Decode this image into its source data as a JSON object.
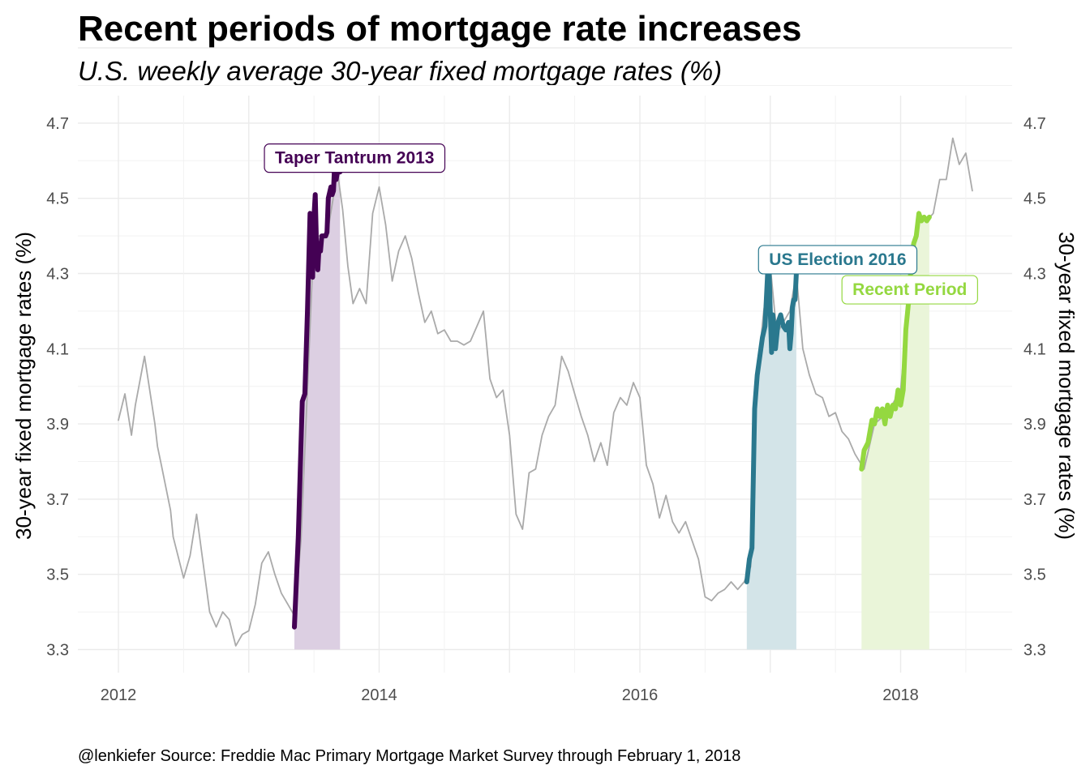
{
  "chart_data": {
    "type": "line",
    "title": "Recent periods of mortgage rate increases",
    "subtitle": "U.S. weekly average 30-year fixed mortgage rates (%)",
    "ylabel": "30-year fixed mortgage rates (%)",
    "ylabel_right": "30-year fixed mortgage rates (%)",
    "caption": "@lenkiefer Source: Freddie Mac Primary Mortgage Market Survey through February 1, 2018",
    "ylim": [
      3.3,
      4.7
    ],
    "xlim": [
      2012.0,
      2018.6
    ],
    "x_ticks": [
      "2012",
      "2014",
      "2016",
      "2018"
    ],
    "y_ticks": [
      "3.3",
      "3.5",
      "3.7",
      "4.1",
      "4.3",
      "4.5",
      "4.7"
    ],
    "y_ticks_all": [
      "3.3",
      "3.5",
      "3.7",
      "3.9",
      "4.1",
      "4.3",
      "4.5",
      "4.7"
    ],
    "grid": true,
    "base_color": "#aaaaaa",
    "series": [
      {
        "x": [
          2012.0,
          2012.05,
          2012.1,
          2012.13,
          2012.2,
          2012.28,
          2012.3,
          2012.33,
          2012.4,
          2012.42,
          2012.5,
          2012.55,
          2012.6,
          2012.7,
          2012.75,
          2012.8,
          2012.85,
          2012.9,
          2012.95,
          2013.0,
          2013.05,
          2013.1,
          2013.15,
          2013.2,
          2013.25,
          2013.3,
          2013.35,
          2013.4,
          2013.5,
          2013.6,
          2013.68,
          2013.72,
          2013.76,
          2013.8,
          2013.85,
          2013.9,
          2013.95,
          2014.0,
          2014.05,
          2014.1,
          2014.15,
          2014.2,
          2014.25,
          2014.3,
          2014.35,
          2014.4,
          2014.45,
          2014.5,
          2014.55,
          2014.6,
          2014.65,
          2014.7,
          2014.75,
          2014.8,
          2014.85,
          2014.9,
          2014.95,
          2015.0,
          2015.05,
          2015.1,
          2015.15,
          2015.2,
          2015.25,
          2015.3,
          2015.35,
          2015.4,
          2015.45,
          2015.5,
          2015.55,
          2015.6,
          2015.65,
          2015.7,
          2015.75,
          2015.8,
          2015.85,
          2015.9,
          2015.95,
          2016.0,
          2016.05,
          2016.1,
          2016.15,
          2016.2,
          2016.25,
          2016.3,
          2016.35,
          2016.4,
          2016.45,
          2016.5,
          2016.55,
          2016.6,
          2016.65,
          2016.7,
          2016.75,
          2016.8,
          2016.85,
          2016.9,
          2016.95,
          2017.0,
          2017.05,
          2017.1,
          2017.15,
          2017.2,
          2017.25,
          2017.3,
          2017.35,
          2017.4,
          2017.45,
          2017.5,
          2017.55,
          2017.6,
          2017.65,
          2017.72,
          2017.8,
          2017.9,
          2018.0,
          2018.1,
          2018.15,
          2018.2,
          2018.25,
          2018.3,
          2018.35,
          2018.4,
          2018.45,
          2018.5,
          2018.55
        ],
        "y": [
          3.91,
          3.98,
          3.87,
          3.95,
          4.08,
          3.9,
          3.84,
          3.79,
          3.67,
          3.6,
          3.49,
          3.55,
          3.66,
          3.4,
          3.36,
          3.4,
          3.38,
          3.31,
          3.34,
          3.35,
          3.42,
          3.53,
          3.56,
          3.5,
          3.45,
          3.42,
          3.39,
          3.59,
          4.4,
          4.4,
          4.57,
          4.47,
          4.32,
          4.22,
          4.26,
          4.22,
          4.46,
          4.53,
          4.43,
          4.28,
          4.36,
          4.4,
          4.34,
          4.25,
          4.17,
          4.2,
          4.14,
          4.15,
          4.12,
          4.12,
          4.11,
          4.12,
          4.16,
          4.2,
          4.02,
          3.97,
          3.99,
          3.87,
          3.66,
          3.62,
          3.77,
          3.78,
          3.87,
          3.92,
          3.95,
          4.08,
          4.04,
          3.98,
          3.92,
          3.87,
          3.8,
          3.85,
          3.79,
          3.93,
          3.97,
          3.95,
          4.01,
          3.97,
          3.79,
          3.74,
          3.65,
          3.71,
          3.64,
          3.61,
          3.64,
          3.59,
          3.54,
          3.44,
          3.43,
          3.45,
          3.46,
          3.48,
          3.46,
          3.48,
          3.52,
          4.03,
          4.2,
          4.32,
          4.14,
          4.17,
          4.2,
          4.3,
          4.1,
          4.03,
          3.98,
          3.97,
          3.92,
          3.93,
          3.88,
          3.86,
          3.82,
          3.78,
          3.9,
          3.93,
          3.99,
          4.38,
          4.45,
          4.44,
          4.46,
          4.55,
          4.55,
          4.66,
          4.59,
          4.62,
          4.52
        ],
        "color": "#aaaaaa"
      },
      {
        "name": "Taper Tantrum 2013",
        "color": "#440154",
        "fill": "#dccfe2",
        "x_start": 2013.35,
        "x_end": 2013.7,
        "x": [
          2013.35,
          2013.38,
          2013.41,
          2013.43,
          2013.45,
          2013.47,
          2013.49,
          2013.5,
          2013.51,
          2013.52,
          2013.53,
          2013.54,
          2013.55,
          2013.56,
          2013.57,
          2013.58,
          2013.59,
          2013.6,
          2013.61,
          2013.63,
          2013.64,
          2013.65,
          2013.66,
          2013.67,
          2013.68,
          2013.69,
          2013.7
        ],
        "y": [
          3.36,
          3.6,
          3.96,
          3.98,
          4.2,
          4.46,
          4.29,
          4.45,
          4.51,
          4.37,
          4.31,
          4.38,
          4.36,
          4.4,
          4.4,
          4.4,
          4.4,
          4.41,
          4.5,
          4.53,
          4.51,
          4.52,
          4.6,
          4.55,
          4.57,
          4.59,
          4.57
        ]
      },
      {
        "name": "US Election 2016",
        "color": "#2a788e",
        "fill": "#d3e4e8",
        "x_start": 2016.82,
        "x_end": 2017.2,
        "x": [
          2016.82,
          2016.84,
          2016.86,
          2016.88,
          2016.9,
          2016.92,
          2016.94,
          2016.96,
          2016.98,
          2016.99,
          2017.0,
          2017.01,
          2017.02,
          2017.04,
          2017.06,
          2017.08,
          2017.1,
          2017.12,
          2017.14,
          2017.15,
          2017.16,
          2017.17,
          2017.18,
          2017.19,
          2017.2
        ],
        "y": [
          3.48,
          3.54,
          3.57,
          3.94,
          4.03,
          4.08,
          4.13,
          4.16,
          4.3,
          4.32,
          4.2,
          4.09,
          4.19,
          4.1,
          4.17,
          4.19,
          4.16,
          4.15,
          4.17,
          4.1,
          4.14,
          4.21,
          4.23,
          4.23,
          4.3
        ]
      },
      {
        "name": "Recent Period",
        "color": "#94d840",
        "fill": "#eaf5d9",
        "x_start": 2017.7,
        "x_end": 2018.23,
        "x": [
          2017.7,
          2017.72,
          2017.75,
          2017.78,
          2017.8,
          2017.82,
          2017.84,
          2017.86,
          2017.88,
          2017.9,
          2017.92,
          2017.94,
          2017.96,
          2017.98,
          2018.0,
          2018.02,
          2018.04,
          2018.06,
          2018.08,
          2018.1,
          2018.12,
          2018.14,
          2018.16,
          2018.18,
          2018.2,
          2018.22
        ],
        "y": [
          3.78,
          3.83,
          3.85,
          3.91,
          3.9,
          3.94,
          3.92,
          3.94,
          3.9,
          3.95,
          3.92,
          3.95,
          3.94,
          3.99,
          3.95,
          3.99,
          4.15,
          4.22,
          4.32,
          4.38,
          4.4,
          4.46,
          4.44,
          4.45,
          4.44,
          4.45
        ]
      }
    ],
    "annotations": [
      {
        "text": "Taper Tantrum 2013",
        "color": "#440154",
        "x": 2013.12,
        "y": 4.61
      },
      {
        "text": "US Election 2016",
        "color": "#2a788e",
        "x": 2016.91,
        "y": 4.34
      },
      {
        "text": "Recent Period",
        "color": "#94d840",
        "x": 2017.55,
        "y": 4.26
      }
    ]
  }
}
